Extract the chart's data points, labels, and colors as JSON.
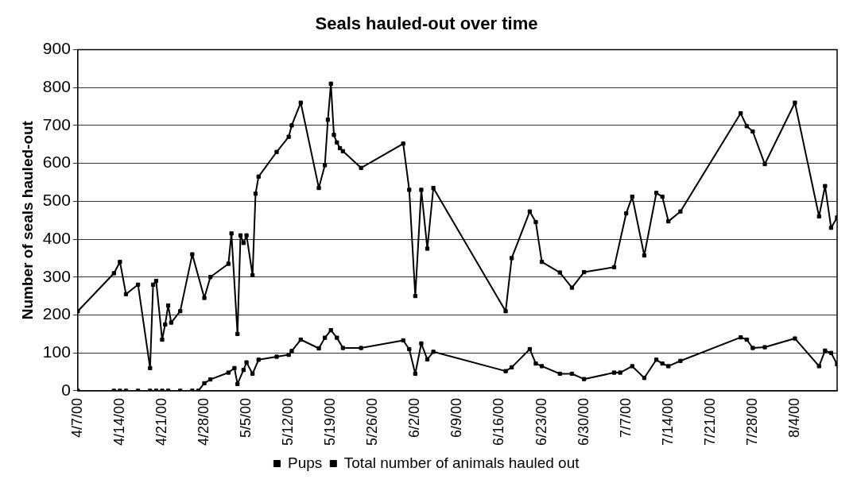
{
  "chart_data": {
    "type": "line",
    "title": "Seals hauled-out over time",
    "ylabel": "Number of seals hauled-out",
    "xlim": [
      "2000-04-07",
      "2000-08-11"
    ],
    "xticks": [
      {
        "value": "2000-04-07",
        "label": "4/7/00"
      },
      {
        "value": "2000-04-14",
        "label": "4/14/00"
      },
      {
        "value": "2000-04-21",
        "label": "4/21/00"
      },
      {
        "value": "2000-04-28",
        "label": "4/28/00"
      },
      {
        "value": "2000-05-05",
        "label": "5/5/00"
      },
      {
        "value": "2000-05-12",
        "label": "5/12/00"
      },
      {
        "value": "2000-05-19",
        "label": "5/19/00"
      },
      {
        "value": "2000-05-26",
        "label": "5/26/00"
      },
      {
        "value": "2000-06-02",
        "label": "6/2/00"
      },
      {
        "value": "2000-06-09",
        "label": "6/9/00"
      },
      {
        "value": "2000-06-16",
        "label": "6/16/00"
      },
      {
        "value": "2000-06-23",
        "label": "6/23/00"
      },
      {
        "value": "2000-06-30",
        "label": "6/30/00"
      },
      {
        "value": "2000-07-07",
        "label": "7/7/00"
      },
      {
        "value": "2000-07-14",
        "label": "7/14/00"
      },
      {
        "value": "2000-07-21",
        "label": "7/21/00"
      },
      {
        "value": "2000-07-28",
        "label": "7/28/00"
      },
      {
        "value": "2000-08-04",
        "label": "8/4/00"
      },
      {
        "value": "2000-08-11",
        "label": null
      }
    ],
    "ylim": [
      0,
      900
    ],
    "yticks": [
      0,
      100,
      200,
      300,
      400,
      500,
      600,
      700,
      800,
      900
    ],
    "grid": "y",
    "legend": "bottom",
    "marker": "square",
    "line_style": "solid",
    "series": [
      {
        "name": "Pups",
        "color": "#000000",
        "x": [
          "2000-04-07",
          "2000-04-13",
          "2000-04-14",
          "2000-04-15",
          "2000-04-17",
          "2000-04-19",
          "2000-04-20",
          "2000-04-21",
          "2000-04-22",
          "2000-04-24",
          "2000-04-26",
          "2000-04-27",
          "2000-04-28",
          "2000-04-29",
          "2000-05-02",
          "2000-05-03",
          "2000-05-03T12:00",
          "2000-05-04T12:00",
          "2000-05-05",
          "2000-05-06",
          "2000-05-07",
          "2000-05-10",
          "2000-05-12",
          "2000-05-12T12:00",
          "2000-05-14",
          "2000-05-17",
          "2000-05-18",
          "2000-05-19",
          "2000-05-20",
          "2000-05-21",
          "2000-05-24",
          "2000-05-31",
          "2000-06-01",
          "2000-06-02",
          "2000-06-03",
          "2000-06-04",
          "2000-06-05",
          "2000-06-17",
          "2000-06-18",
          "2000-06-21",
          "2000-06-22",
          "2000-06-23",
          "2000-06-26",
          "2000-06-28",
          "2000-06-30",
          "2000-07-05",
          "2000-07-06",
          "2000-07-08",
          "2000-07-10",
          "2000-07-12",
          "2000-07-13",
          "2000-07-14",
          "2000-07-16",
          "2000-07-26",
          "2000-07-27",
          "2000-07-28",
          "2000-07-30",
          "2000-08-04",
          "2000-08-08",
          "2000-08-09",
          "2000-08-10",
          "2000-08-11"
        ],
        "values": [
          0,
          0,
          0,
          0,
          0,
          0,
          0,
          0,
          0,
          0,
          0,
          0,
          20,
          30,
          48,
          60,
          18,
          55,
          75,
          45,
          82,
          90,
          95,
          105,
          135,
          112,
          140,
          160,
          140,
          113,
          113,
          133,
          110,
          45,
          125,
          83,
          103,
          52,
          62,
          110,
          72,
          65,
          45,
          45,
          31,
          48,
          48,
          65,
          34,
          82,
          72,
          65,
          79,
          141,
          135,
          113,
          115,
          138,
          65,
          106,
          100,
          70
        ]
      },
      {
        "name": "Total number of animals hauled out",
        "color": "#000000",
        "x": [
          "2000-04-07",
          "2000-04-13",
          "2000-04-14",
          "2000-04-15",
          "2000-04-17",
          "2000-04-19",
          "2000-04-19T12:00",
          "2000-04-20",
          "2000-04-21",
          "2000-04-21T12:00",
          "2000-04-22",
          "2000-04-22T12:00",
          "2000-04-24",
          "2000-04-26",
          "2000-04-28",
          "2000-04-29",
          "2000-05-02",
          "2000-05-02T12:00",
          "2000-05-03T12:00",
          "2000-05-04",
          "2000-05-04T12:00",
          "2000-05-05",
          "2000-05-06",
          "2000-05-06T12:00",
          "2000-05-07",
          "2000-05-10",
          "2000-05-12",
          "2000-05-12T12:00",
          "2000-05-14",
          "2000-05-17",
          "2000-05-18",
          "2000-05-18T12:00",
          "2000-05-19",
          "2000-05-19T12:00",
          "2000-05-20",
          "2000-05-20T12:00",
          "2000-05-21",
          "2000-05-24",
          "2000-05-31",
          "2000-06-01",
          "2000-06-02",
          "2000-06-03",
          "2000-06-04",
          "2000-06-05",
          "2000-06-17",
          "2000-06-18",
          "2000-06-21",
          "2000-06-22",
          "2000-06-23",
          "2000-06-26",
          "2000-06-28",
          "2000-06-30",
          "2000-07-05",
          "2000-07-07",
          "2000-07-08",
          "2000-07-10",
          "2000-07-12",
          "2000-07-13",
          "2000-07-14",
          "2000-07-16",
          "2000-07-26",
          "2000-07-27",
          "2000-07-28",
          "2000-07-30",
          "2000-08-04",
          "2000-08-08",
          "2000-08-09",
          "2000-08-10",
          "2000-08-11"
        ],
        "values": [
          210,
          310,
          340,
          255,
          280,
          60,
          280,
          290,
          135,
          175,
          225,
          180,
          210,
          360,
          245,
          300,
          335,
          415,
          150,
          410,
          390,
          410,
          305,
          520,
          565,
          630,
          670,
          700,
          760,
          535,
          595,
          715,
          810,
          675,
          655,
          640,
          632,
          588,
          652,
          530,
          250,
          530,
          375,
          535,
          210,
          350,
          473,
          445,
          340,
          312,
          272,
          313,
          326,
          468,
          512,
          357,
          522,
          512,
          447,
          473,
          732,
          698,
          684,
          598,
          760,
          460,
          540,
          430,
          457
        ]
      }
    ]
  }
}
